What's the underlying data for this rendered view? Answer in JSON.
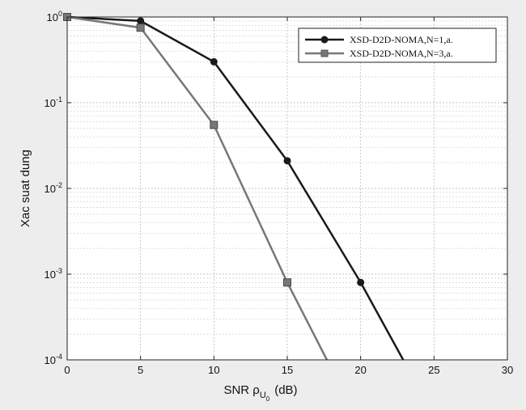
{
  "chart_data": {
    "type": "line",
    "xlabel": "SNR ρ",
    "xlabel_sub": "U",
    "xlabel_subsub": "0",
    "xlabel_unit": "(dB)",
    "ylabel": "Xac suat dung",
    "xlim": [
      0,
      30
    ],
    "ylim": [
      0.0001,
      1
    ],
    "yscale": "log",
    "grid": true,
    "legend_position": "top-right",
    "x_ticks": [
      "0",
      "5",
      "10",
      "15",
      "20",
      "25",
      "30"
    ],
    "y_ticks": [
      {
        "base": "10",
        "exp": "0"
      },
      {
        "base": "10",
        "exp": "-1"
      },
      {
        "base": "10",
        "exp": "-2"
      },
      {
        "base": "10",
        "exp": "-3"
      },
      {
        "base": "10",
        "exp": "-4"
      }
    ],
    "series": [
      {
        "name": "XSD-D2D-NOMA,N=1,a.",
        "color": "#1a1a1a",
        "marker": "filled-circle",
        "points": [
          [
            0,
            1.0
          ],
          [
            5,
            0.9
          ],
          [
            10,
            0.3
          ],
          [
            15,
            0.021
          ],
          [
            20,
            0.0008
          ],
          [
            22.9,
            0.0001
          ]
        ]
      },
      {
        "name": "XSD-D2D-NOMA,N=3,a.",
        "color": "#777777",
        "marker": "square",
        "points": [
          [
            0,
            1.0
          ],
          [
            5,
            0.75
          ],
          [
            10,
            0.055
          ],
          [
            15,
            0.0008
          ],
          [
            17.7,
            0.0001
          ]
        ]
      }
    ]
  }
}
